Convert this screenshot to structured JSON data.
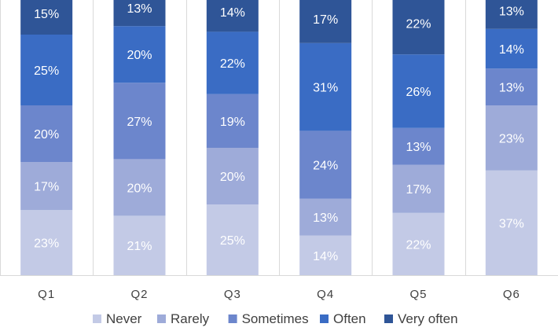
{
  "chart_data": {
    "type": "bar",
    "stacked": true,
    "categories": [
      "Q1",
      "Q2",
      "Q3",
      "Q4",
      "Q5",
      "Q6"
    ],
    "series": [
      {
        "name": "Never",
        "color": "#c3cae6",
        "values": [
          23,
          21,
          25,
          14,
          22,
          37
        ]
      },
      {
        "name": "Rarely",
        "color": "#9eabd9",
        "values": [
          17,
          20,
          20,
          13,
          17,
          23
        ]
      },
      {
        "name": "Sometimes",
        "color": "#6c86cc",
        "values": [
          20,
          27,
          19,
          24,
          13,
          13
        ]
      },
      {
        "name": "Often",
        "color": "#3a6cc4",
        "values": [
          25,
          20,
          22,
          31,
          26,
          14
        ]
      },
      {
        "name": "Very often",
        "color": "#2f5597",
        "values": [
          15,
          13,
          14,
          17,
          22,
          13
        ]
      }
    ],
    "value_suffix": "%",
    "ylim": [
      0,
      100
    ],
    "legend_position": "bottom",
    "gridlines": false,
    "title": "",
    "xlabel": "",
    "ylabel": ""
  }
}
